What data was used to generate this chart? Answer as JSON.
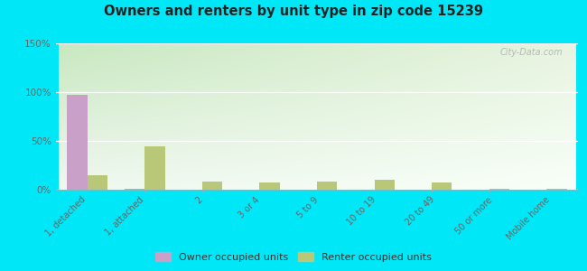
{
  "title": "Owners and renters by unit type in zip code 15239",
  "categories": [
    "1, detached",
    "1, attached",
    "2",
    "3 or 4",
    "5 to 9",
    "10 to 19",
    "20 to 49",
    "50 or more",
    "Mobile home"
  ],
  "owner_values": [
    97,
    1,
    0,
    0,
    0,
    0,
    0,
    0,
    0
  ],
  "renter_values": [
    15,
    44,
    8,
    7,
    8,
    10,
    7,
    1,
    1
  ],
  "owner_color": "#c8a0c8",
  "renter_color": "#b8c878",
  "bg_color_topleft": "#c8e8c0",
  "bg_color_topright": "#e8f4e0",
  "bg_color_bottom": "#f8fff8",
  "outer_bg": "#00e8f8",
  "ylim": [
    0,
    150
  ],
  "yticks": [
    0,
    50,
    100,
    150
  ],
  "ytick_labels": [
    "0%",
    "50%",
    "100%",
    "150%"
  ],
  "bar_width": 0.35,
  "watermark": "City-Data.com",
  "legend_owner": "Owner occupied units",
  "legend_renter": "Renter occupied units",
  "grid_color": "#e0ece0"
}
